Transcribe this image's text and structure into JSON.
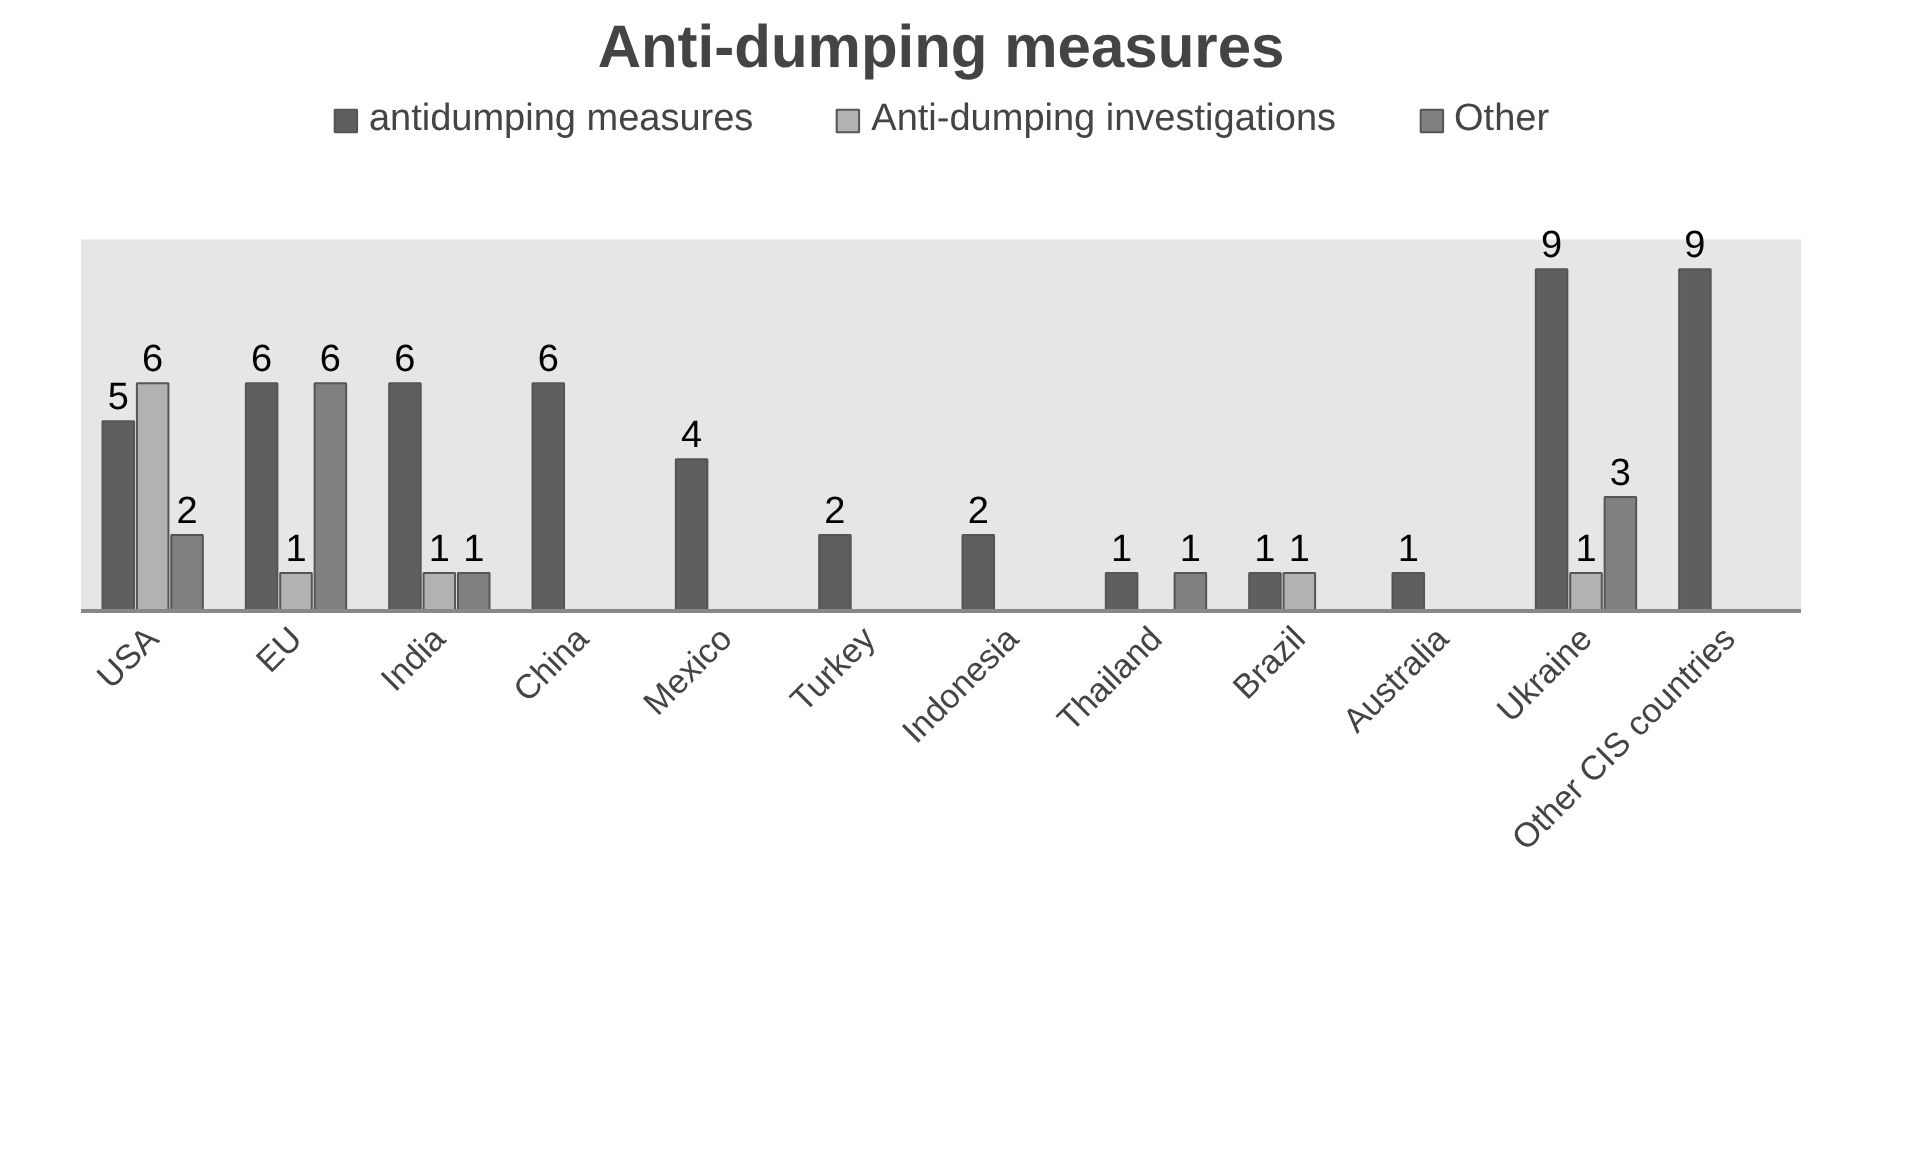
{
  "chart_data": {
    "type": "bar",
    "title": "Anti-dumping measures",
    "categories": [
      "USA",
      "EU",
      "India",
      "China",
      "Mexico",
      "Turkey",
      "Indonesia",
      "Thailand",
      "Brazil",
      "Australia",
      "Ukraine",
      "Other CIS countries"
    ],
    "series": [
      {
        "name": "antidumping measures",
        "color": "#5f5f5f",
        "values": [
          5,
          6,
          6,
          6,
          4,
          2,
          2,
          1,
          1,
          1,
          9,
          9
        ]
      },
      {
        "name": "Anti-dumping investigations",
        "color": "#b2b2b2",
        "values": [
          6,
          1,
          1,
          null,
          null,
          null,
          null,
          null,
          1,
          null,
          1,
          null
        ]
      },
      {
        "name": "Other",
        "color": "#808080",
        "values": [
          2,
          6,
          1,
          null,
          null,
          null,
          null,
          1,
          null,
          null,
          3,
          null
        ]
      }
    ],
    "data_labels": true,
    "legend": "top"
  }
}
